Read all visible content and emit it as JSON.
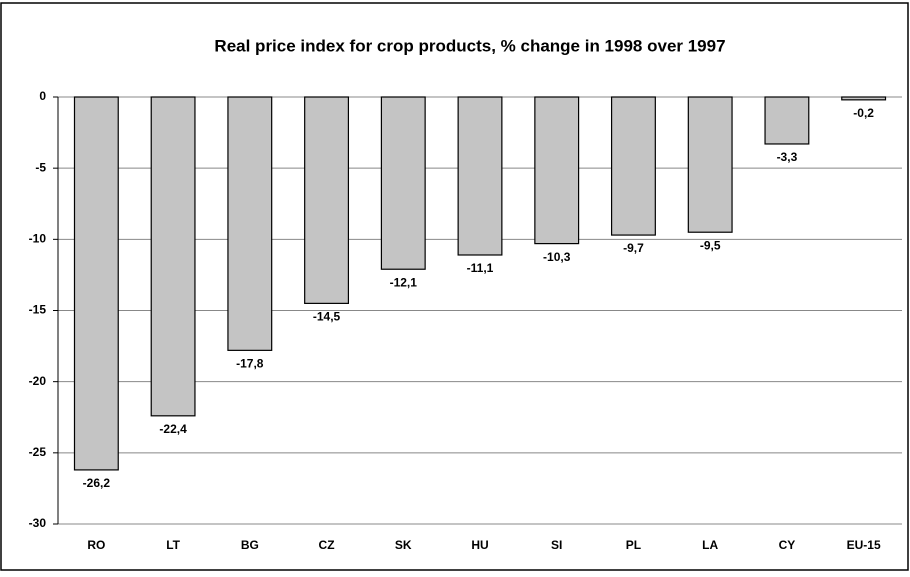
{
  "chart_data": {
    "type": "bar",
    "title": "Real price index for crop products, % change in 1998 over 1997",
    "categories": [
      "RO",
      "LT",
      "BG",
      "CZ",
      "SK",
      "HU",
      "SI",
      "PL",
      "LA",
      "CY",
      "EU-15"
    ],
    "values": [
      -26.2,
      -22.4,
      -17.8,
      -14.5,
      -12.1,
      -11.1,
      -10.3,
      -9.7,
      -9.5,
      -3.3,
      -0.2
    ],
    "value_labels": [
      "-26,2",
      "-22,4",
      "-17,8",
      "-14,5",
      "-12,1",
      "-11,1",
      "-10,3",
      "-9,7",
      "-9,5",
      "-3,3",
      "-0,2"
    ],
    "color": "#c4c4c4",
    "ylim": [
      -30,
      0
    ],
    "yticks": [
      0,
      -5,
      -10,
      -15,
      -20,
      -25,
      -30
    ],
    "grid": true
  }
}
